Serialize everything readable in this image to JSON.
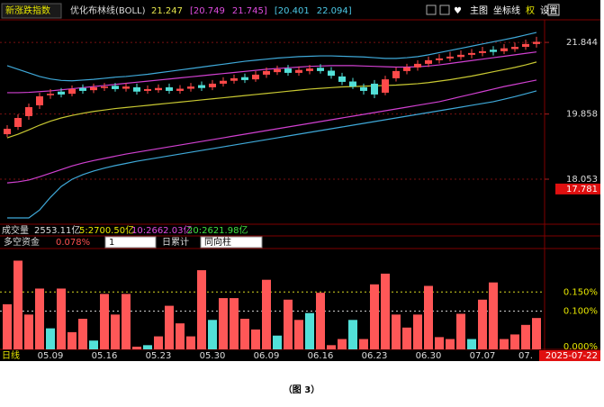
{
  "chart_data": [
    {
      "type": "candlestick",
      "title": "新涨跌指数",
      "indicator": "优化布林线(BOLL)",
      "indicator_values": [
        {
          "text": "21.247",
          "color": "#e6e64c"
        },
        {
          "text": "[20.749",
          "color": "#e04ce0"
        },
        {
          "text": "21.745]",
          "color": "#e04ce0"
        },
        {
          "text": "[20.401",
          "color": "#4cc8e6"
        },
        {
          "text": "22.094]",
          "color": "#4cc8e6"
        }
      ],
      "toolbar": [
        "主图",
        "坐标线",
        "权",
        "设置"
      ],
      "period": "日线",
      "cursor_date": "2025-07-22",
      "categories": [
        null,
        null,
        null,
        null,
        "05.09",
        null,
        null,
        null,
        null,
        "05.16",
        null,
        null,
        null,
        null,
        "05.23",
        null,
        null,
        null,
        null,
        "05.30",
        null,
        null,
        null,
        null,
        "06.09",
        null,
        null,
        null,
        null,
        "06.16",
        null,
        null,
        null,
        null,
        "06.23",
        null,
        null,
        null,
        null,
        "06.30",
        null,
        null,
        null,
        null,
        "07.07",
        null,
        null,
        null,
        "07.",
        null
      ],
      "open": [
        19.3,
        19.5,
        19.8,
        20.1,
        20.38,
        20.48,
        20.42,
        20.58,
        20.52,
        20.58,
        20.64,
        20.56,
        20.6,
        20.5,
        20.52,
        20.6,
        20.5,
        20.56,
        20.66,
        20.6,
        20.7,
        20.78,
        20.88,
        20.82,
        20.95,
        21.02,
        21.12,
        21.0,
        21.05,
        21.14,
        21.06,
        20.9,
        20.76,
        20.6,
        20.7,
        20.45,
        20.85,
        21.05,
        21.15,
        21.25,
        21.35,
        21.4,
        21.44,
        21.5,
        21.55,
        21.64,
        21.6,
        21.66,
        21.72,
        21.8
      ],
      "high": [
        19.55,
        19.85,
        20.15,
        20.45,
        20.55,
        20.58,
        20.65,
        20.68,
        20.7,
        20.72,
        20.72,
        20.72,
        20.7,
        20.65,
        20.68,
        20.7,
        20.66,
        20.72,
        20.76,
        20.8,
        20.88,
        20.95,
        20.98,
        21.05,
        21.15,
        21.2,
        21.22,
        21.18,
        21.22,
        21.24,
        21.16,
        21.0,
        20.86,
        20.7,
        20.8,
        20.92,
        21.15,
        21.25,
        21.35,
        21.45,
        21.52,
        21.58,
        21.62,
        21.66,
        21.72,
        21.74,
        21.8,
        21.84,
        21.92,
        22.0
      ],
      "low": [
        19.22,
        19.42,
        19.7,
        20.0,
        20.28,
        20.32,
        20.35,
        20.42,
        20.44,
        20.5,
        20.48,
        20.48,
        20.4,
        20.42,
        20.45,
        20.42,
        20.42,
        20.48,
        20.5,
        20.52,
        20.62,
        20.7,
        20.72,
        20.75,
        20.86,
        20.94,
        20.92,
        20.92,
        20.96,
        20.98,
        20.84,
        20.66,
        20.55,
        20.4,
        20.3,
        20.38,
        20.76,
        20.96,
        21.06,
        21.16,
        21.26,
        21.32,
        21.36,
        21.4,
        21.46,
        21.48,
        21.52,
        21.58,
        21.64,
        21.7
      ],
      "close": [
        19.45,
        19.75,
        20.05,
        20.35,
        20.42,
        20.4,
        20.55,
        20.5,
        20.6,
        20.62,
        20.55,
        20.62,
        20.48,
        20.55,
        20.58,
        20.5,
        20.56,
        20.62,
        20.58,
        20.7,
        20.78,
        20.85,
        20.8,
        20.95,
        21.05,
        21.1,
        21.0,
        21.08,
        21.12,
        21.05,
        20.92,
        20.75,
        20.62,
        20.5,
        20.4,
        20.82,
        21.05,
        21.15,
        21.25,
        21.35,
        21.4,
        21.45,
        21.5,
        21.55,
        21.6,
        21.58,
        21.68,
        21.72,
        21.8,
        21.86
      ],
      "up_color": "#ff4a4a",
      "down_color": "#52e0d8",
      "lines": [
        {
          "color": "#3fa9d9",
          "values": [
            21.2,
            21.1,
            21.0,
            20.9,
            20.83,
            20.79,
            20.78,
            20.8,
            20.82,
            20.85,
            20.88,
            20.9,
            20.93,
            20.96,
            21.0,
            21.04,
            21.08,
            21.12,
            21.16,
            21.2,
            21.24,
            21.28,
            21.32,
            21.35,
            21.38,
            21.41,
            21.43,
            21.45,
            21.46,
            21.47,
            21.47,
            21.46,
            21.45,
            21.44,
            21.42,
            21.4,
            21.4,
            21.42,
            21.45,
            21.5,
            21.56,
            21.62,
            21.68,
            21.74,
            21.8,
            21.86,
            21.92,
            21.98,
            22.05,
            22.12
          ]
        },
        {
          "color": "#d040d0",
          "values": [
            20.45,
            20.45,
            20.46,
            20.48,
            20.5,
            20.53,
            20.56,
            20.59,
            20.62,
            20.65,
            20.68,
            20.71,
            20.74,
            20.77,
            20.8,
            20.83,
            20.86,
            20.89,
            20.92,
            20.95,
            20.98,
            21.01,
            21.04,
            21.07,
            21.1,
            21.12,
            21.14,
            21.16,
            21.18,
            21.19,
            21.2,
            21.2,
            21.2,
            21.19,
            21.18,
            21.17,
            21.16,
            21.16,
            21.17,
            21.19,
            21.22,
            21.26,
            21.3,
            21.34,
            21.38,
            21.42,
            21.46,
            21.5,
            21.54,
            21.58
          ]
        },
        {
          "color": "#c8c832",
          "values": [
            19.2,
            19.3,
            19.42,
            19.55,
            19.66,
            19.75,
            19.82,
            19.88,
            19.93,
            19.97,
            20.01,
            20.04,
            20.07,
            20.1,
            20.13,
            20.16,
            20.19,
            20.22,
            20.25,
            20.28,
            20.31,
            20.34,
            20.37,
            20.4,
            20.43,
            20.46,
            20.49,
            20.52,
            20.55,
            20.57,
            20.59,
            20.61,
            20.62,
            20.63,
            20.64,
            20.65,
            20.66,
            20.68,
            20.7,
            20.73,
            20.77,
            20.81,
            20.86,
            20.91,
            20.97,
            21.03,
            21.09,
            21.15,
            21.22,
            21.3
          ]
        },
        {
          "color": "#d040d0",
          "values": [
            17.95,
            17.98,
            18.03,
            18.12,
            18.22,
            18.32,
            18.42,
            18.5,
            18.57,
            18.63,
            18.69,
            18.75,
            18.8,
            18.85,
            18.9,
            18.95,
            19.0,
            19.05,
            19.1,
            19.15,
            19.2,
            19.25,
            19.3,
            19.35,
            19.4,
            19.45,
            19.5,
            19.55,
            19.6,
            19.65,
            19.7,
            19.75,
            19.8,
            19.85,
            19.9,
            19.95,
            20.0,
            20.05,
            20.1,
            20.15,
            20.2,
            20.27,
            20.34,
            20.41,
            20.48,
            20.55,
            20.62,
            20.68,
            20.74,
            20.8
          ]
        },
        {
          "color": "#3fa9d9",
          "values": [
            16.98,
            16.98,
            16.98,
            17.2,
            17.55,
            17.85,
            18.05,
            18.18,
            18.28,
            18.36,
            18.43,
            18.49,
            18.55,
            18.6,
            18.65,
            18.7,
            18.75,
            18.8,
            18.85,
            18.9,
            18.95,
            19.0,
            19.05,
            19.1,
            19.15,
            19.2,
            19.25,
            19.3,
            19.35,
            19.4,
            19.45,
            19.5,
            19.55,
            19.6,
            19.65,
            19.7,
            19.75,
            19.8,
            19.85,
            19.9,
            19.95,
            20.0,
            20.05,
            20.1,
            20.15,
            20.2,
            20.27,
            20.34,
            20.42,
            20.5
          ]
        }
      ],
      "ylim": [
        16.83,
        22.47
      ],
      "yticks": [
        21.844,
        19.858,
        18.053
      ],
      "marker_value": 17.781,
      "grid": true
    },
    {
      "type": "bar",
      "title": "多空资金",
      "value_label": "0.078%",
      "controls": [
        "1",
        "日累计",
        "同向柱"
      ],
      "volume_header": [
        "成交量",
        "2553.11亿",
        "5:2700.50亿",
        "10:2662.03亿",
        "20:2621.98亿"
      ],
      "values": [
        0.118,
        0.232,
        0.091,
        0.159,
        0.055,
        0.159,
        0.045,
        0.08,
        0.023,
        0.145,
        0.091,
        0.145,
        0.007,
        0.011,
        0.034,
        0.114,
        0.068,
        0.034,
        0.207,
        0.077,
        0.134,
        0.134,
        0.08,
        0.052,
        0.182,
        0.036,
        0.13,
        0.077,
        0.095,
        0.148,
        0.011,
        0.027,
        0.077,
        0.027,
        0.17,
        0.198,
        0.091,
        0.057,
        0.091,
        0.166,
        0.032,
        0.027,
        0.093,
        0.027,
        0.13,
        0.175,
        0.027,
        0.039,
        0.064,
        0.082
      ],
      "colors": [
        "#ff5757",
        "#ff5757",
        "#ff5757",
        "#ff5757",
        "#52e0d8",
        "#ff5757",
        "#ff5757",
        "#ff5757",
        "#52e0d8",
        "#ff5757",
        "#ff5757",
        "#ff5757",
        "#ff5757",
        "#52e0d8",
        "#ff5757",
        "#ff5757",
        "#ff5757",
        "#ff5757",
        "#ff5757",
        "#52e0d8",
        "#ff5757",
        "#ff5757",
        "#ff5757",
        "#ff5757",
        "#ff5757",
        "#52e0d8",
        "#ff5757",
        "#ff5757",
        "#52e0d8",
        "#ff5757",
        "#ff5757",
        "#ff5757",
        "#52e0d8",
        "#ff5757",
        "#ff5757",
        "#ff5757",
        "#ff5757",
        "#ff5757",
        "#ff5757",
        "#ff5757",
        "#ff5757",
        "#ff5757",
        "#ff5757",
        "#52e0d8",
        "#ff5757",
        "#ff5757",
        "#ff5757",
        "#ff5757",
        "#ff5757",
        "#ff5757"
      ],
      "ylim": [
        0,
        0.259
      ],
      "yticks": [
        {
          "value": 0.15,
          "label": "0.150%"
        },
        {
          "value": 0.1,
          "label": "0.100%"
        },
        {
          "value": 0,
          "label": "0.000%"
        }
      ],
      "grid_colors": [
        "#d8d820",
        "#cccccc"
      ]
    }
  ],
  "caption": "（图 3）"
}
